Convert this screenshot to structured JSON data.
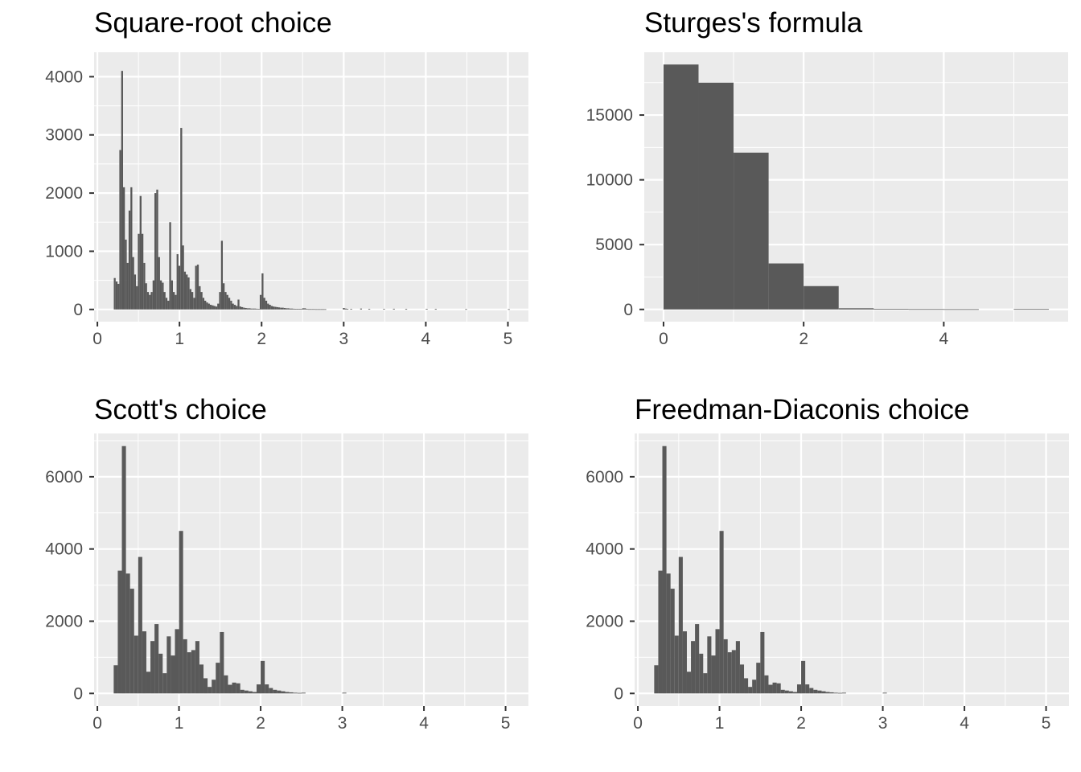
{
  "colors": {
    "panel_bg": "#ebebeb",
    "grid": "#ffffff",
    "bar": "#595959",
    "tick": "#333333",
    "tick_label": "#4d4d4d"
  },
  "chart_data": [
    {
      "type": "bar",
      "title": "Square-root choice",
      "xlim": [
        -0.04,
        5.25
      ],
      "ylim": [
        -210,
        4420
      ],
      "xticks": [
        0,
        1,
        2,
        3,
        4,
        5
      ],
      "xtick_labels": [
        "0",
        "1",
        "2",
        "3",
        "4",
        "5"
      ],
      "yticks": [
        0,
        1000,
        2000,
        3000,
        4000
      ],
      "ytick_labels": [
        "0",
        "1000",
        "2000",
        "3000",
        "4000"
      ],
      "grid": true,
      "bin_width": 0.0225,
      "bins": [
        [
          0.2,
          540
        ],
        [
          0.2225,
          480
        ],
        [
          0.245,
          440
        ],
        [
          0.2675,
          2740
        ],
        [
          0.29,
          4100
        ],
        [
          0.3125,
          2100
        ],
        [
          0.335,
          1200
        ],
        [
          0.3575,
          800
        ],
        [
          0.38,
          1700
        ],
        [
          0.4025,
          2100
        ],
        [
          0.425,
          900
        ],
        [
          0.4475,
          600
        ],
        [
          0.47,
          400
        ],
        [
          0.4925,
          1300
        ],
        [
          0.515,
          1950
        ],
        [
          0.5375,
          1300
        ],
        [
          0.56,
          800
        ],
        [
          0.5825,
          450
        ],
        [
          0.605,
          300
        ],
        [
          0.6275,
          250
        ],
        [
          0.65,
          300
        ],
        [
          0.6725,
          500
        ],
        [
          0.695,
          2000
        ],
        [
          0.7175,
          2060
        ],
        [
          0.74,
          900
        ],
        [
          0.7625,
          500
        ],
        [
          0.785,
          460
        ],
        [
          0.8075,
          300
        ],
        [
          0.83,
          200
        ],
        [
          0.8525,
          150
        ],
        [
          0.875,
          1500
        ],
        [
          0.8975,
          500
        ],
        [
          0.92,
          300
        ],
        [
          0.9425,
          250
        ],
        [
          0.965,
          950
        ],
        [
          0.9875,
          750
        ],
        [
          1.01,
          3120
        ],
        [
          1.0325,
          1100
        ],
        [
          1.055,
          650
        ],
        [
          1.0775,
          600
        ],
        [
          1.1,
          550
        ],
        [
          1.1225,
          350
        ],
        [
          1.145,
          300
        ],
        [
          1.1675,
          200
        ],
        [
          1.19,
          750
        ],
        [
          1.2125,
          770
        ],
        [
          1.235,
          400
        ],
        [
          1.2575,
          300
        ],
        [
          1.28,
          200
        ],
        [
          1.3025,
          150
        ],
        [
          1.325,
          120
        ],
        [
          1.3475,
          100
        ],
        [
          1.37,
          80
        ],
        [
          1.3925,
          70
        ],
        [
          1.415,
          60
        ],
        [
          1.4375,
          50
        ],
        [
          1.46,
          100
        ],
        [
          1.4825,
          300
        ],
        [
          1.505,
          1180
        ],
        [
          1.5275,
          450
        ],
        [
          1.55,
          300
        ],
        [
          1.5725,
          250
        ],
        [
          1.595,
          200
        ],
        [
          1.6175,
          150
        ],
        [
          1.64,
          100
        ],
        [
          1.6625,
          80
        ],
        [
          1.685,
          60
        ],
        [
          1.7075,
          170
        ],
        [
          1.73,
          50
        ],
        [
          1.7525,
          40
        ],
        [
          1.775,
          30
        ],
        [
          1.7975,
          25
        ],
        [
          1.82,
          20
        ],
        [
          1.8425,
          20
        ],
        [
          1.865,
          15
        ],
        [
          1.8875,
          15
        ],
        [
          1.91,
          15
        ],
        [
          1.9325,
          12
        ],
        [
          1.955,
          10
        ],
        [
          1.9775,
          250
        ],
        [
          2.0,
          620
        ],
        [
          2.0225,
          200
        ],
        [
          2.045,
          150
        ],
        [
          2.0675,
          100
        ],
        [
          2.09,
          80
        ],
        [
          2.1125,
          60
        ],
        [
          2.135,
          50
        ],
        [
          2.1575,
          45
        ],
        [
          2.18,
          40
        ],
        [
          2.2025,
          35
        ],
        [
          2.225,
          30
        ],
        [
          2.2475,
          30
        ],
        [
          2.27,
          25
        ],
        [
          2.2925,
          20
        ],
        [
          2.315,
          20
        ],
        [
          2.3375,
          15
        ],
        [
          2.36,
          15
        ],
        [
          2.3825,
          12
        ],
        [
          2.405,
          10
        ],
        [
          2.4275,
          10
        ],
        [
          2.45,
          10
        ],
        [
          2.4725,
          8
        ],
        [
          2.495,
          20
        ],
        [
          2.5175,
          20
        ],
        [
          2.54,
          8
        ],
        [
          2.5625,
          6
        ],
        [
          2.585,
          6
        ],
        [
          2.6075,
          6
        ],
        [
          2.63,
          6
        ],
        [
          2.6525,
          5
        ],
        [
          2.675,
          5
        ],
        [
          2.6975,
          5
        ],
        [
          2.72,
          5
        ],
        [
          2.7425,
          5
        ],
        [
          2.765,
          5
        ],
        [
          2.99,
          25
        ],
        [
          3.0125,
          15
        ],
        [
          3.035,
          8
        ],
        [
          3.08,
          10
        ],
        [
          3.2,
          15
        ],
        [
          3.3,
          10
        ],
        [
          3.48,
          10
        ],
        [
          3.6,
          12
        ],
        [
          3.75,
          8
        ],
        [
          4.0,
          10
        ],
        [
          4.11,
          8
        ],
        [
          4.48,
          6
        ],
        [
          5.0,
          5
        ]
      ]
    },
    {
      "type": "bar",
      "title": "Sturges's formula",
      "xlim": [
        -0.275,
        5.775
      ],
      "ylim": [
        -945,
        19845
      ],
      "xticks": [
        0,
        2,
        4
      ],
      "xtick_labels": [
        "0",
        "2",
        "4"
      ],
      "yticks": [
        0,
        5000,
        10000,
        15000
      ],
      "ytick_labels": [
        "0",
        "5000",
        "10000",
        "15000"
      ],
      "grid": true,
      "bin_width": 0.5,
      "bins": [
        [
          0,
          18900
        ],
        [
          0.5,
          17500
        ],
        [
          1.0,
          12100
        ],
        [
          1.5,
          3550
        ],
        [
          2.0,
          1800
        ],
        [
          2.5,
          90
        ],
        [
          3.0,
          40
        ],
        [
          3.5,
          25
        ],
        [
          4.0,
          20
        ],
        [
          5.0,
          30
        ]
      ]
    },
    {
      "type": "bar",
      "title": "Scott's choice",
      "xlim": [
        -0.04,
        5.28
      ],
      "ylim": [
        -350,
        7200
      ],
      "xticks": [
        0,
        1,
        2,
        3,
        4,
        5
      ],
      "xtick_labels": [
        "0",
        "1",
        "2",
        "3",
        "4",
        "5"
      ],
      "yticks": [
        0,
        2000,
        4000,
        6000
      ],
      "ytick_labels": [
        "0",
        "2000",
        "4000",
        "6000"
      ],
      "grid": true,
      "bin_width": 0.05,
      "bins": [
        [
          0.2,
          780
        ],
        [
          0.25,
          3400
        ],
        [
          0.3,
          6850
        ],
        [
          0.35,
          3320
        ],
        [
          0.4,
          2900
        ],
        [
          0.45,
          1600
        ],
        [
          0.5,
          3780
        ],
        [
          0.55,
          1720
        ],
        [
          0.6,
          600
        ],
        [
          0.65,
          1450
        ],
        [
          0.7,
          1920
        ],
        [
          0.75,
          1100
        ],
        [
          0.8,
          560
        ],
        [
          0.85,
          1580
        ],
        [
          0.9,
          1050
        ],
        [
          0.95,
          1780
        ],
        [
          1.0,
          4500
        ],
        [
          1.05,
          1500
        ],
        [
          1.1,
          1140
        ],
        [
          1.15,
          1200
        ],
        [
          1.2,
          1450
        ],
        [
          1.25,
          800
        ],
        [
          1.3,
          420
        ],
        [
          1.35,
          180
        ],
        [
          1.4,
          380
        ],
        [
          1.45,
          850
        ],
        [
          1.5,
          1700
        ],
        [
          1.55,
          500
        ],
        [
          1.6,
          240
        ],
        [
          1.65,
          300
        ],
        [
          1.7,
          280
        ],
        [
          1.75,
          100
        ],
        [
          1.8,
          80
        ],
        [
          1.85,
          60
        ],
        [
          1.9,
          40
        ],
        [
          1.95,
          250
        ],
        [
          2.0,
          900
        ],
        [
          2.05,
          250
        ],
        [
          2.1,
          150
        ],
        [
          2.15,
          100
        ],
        [
          2.2,
          80
        ],
        [
          2.25,
          60
        ],
        [
          2.3,
          40
        ],
        [
          2.35,
          30
        ],
        [
          2.4,
          20
        ],
        [
          2.45,
          15
        ],
        [
          2.5,
          20
        ],
        [
          3.0,
          20
        ]
      ]
    },
    {
      "type": "bar",
      "title": "Freedman-Diaconis choice",
      "xlim": [
        -0.04,
        5.28
      ],
      "ylim": [
        -350,
        7200
      ],
      "xticks": [
        0,
        1,
        2,
        3,
        4,
        5
      ],
      "xtick_labels": [
        "0",
        "1",
        "2",
        "3",
        "4",
        "5"
      ],
      "yticks": [
        0,
        2000,
        4000,
        6000
      ],
      "ytick_labels": [
        "0",
        "2000",
        "4000",
        "6000"
      ],
      "grid": true,
      "bin_width": 0.05,
      "bins": [
        [
          0.2,
          780
        ],
        [
          0.25,
          3400
        ],
        [
          0.3,
          6850
        ],
        [
          0.35,
          3320
        ],
        [
          0.4,
          2900
        ],
        [
          0.45,
          1600
        ],
        [
          0.5,
          3780
        ],
        [
          0.55,
          1720
        ],
        [
          0.6,
          600
        ],
        [
          0.65,
          1450
        ],
        [
          0.7,
          1920
        ],
        [
          0.75,
          1100
        ],
        [
          0.8,
          560
        ],
        [
          0.85,
          1580
        ],
        [
          0.9,
          1050
        ],
        [
          0.95,
          1780
        ],
        [
          1.0,
          4500
        ],
        [
          1.05,
          1500
        ],
        [
          1.1,
          1140
        ],
        [
          1.15,
          1200
        ],
        [
          1.2,
          1450
        ],
        [
          1.25,
          800
        ],
        [
          1.3,
          420
        ],
        [
          1.35,
          180
        ],
        [
          1.4,
          380
        ],
        [
          1.45,
          850
        ],
        [
          1.5,
          1700
        ],
        [
          1.55,
          500
        ],
        [
          1.6,
          240
        ],
        [
          1.65,
          300
        ],
        [
          1.7,
          280
        ],
        [
          1.75,
          100
        ],
        [
          1.8,
          80
        ],
        [
          1.85,
          60
        ],
        [
          1.9,
          40
        ],
        [
          1.95,
          250
        ],
        [
          2.0,
          900
        ],
        [
          2.05,
          250
        ],
        [
          2.1,
          150
        ],
        [
          2.15,
          100
        ],
        [
          2.2,
          80
        ],
        [
          2.25,
          60
        ],
        [
          2.3,
          40
        ],
        [
          2.35,
          30
        ],
        [
          2.4,
          20
        ],
        [
          2.45,
          15
        ],
        [
          2.5,
          20
        ],
        [
          3.0,
          20
        ]
      ]
    }
  ]
}
